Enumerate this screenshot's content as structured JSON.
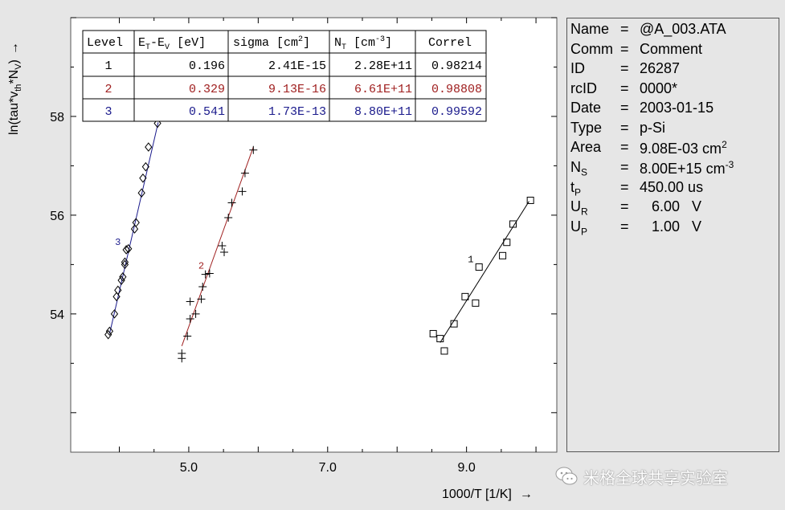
{
  "chart_data": {
    "type": "scatter",
    "xlabel": "1000/T  [1/K]",
    "ylabel": "ln(tau*v_th*N_V)",
    "xlim": [
      3.3,
      10.3
    ],
    "ylim": [
      51.2,
      60.0
    ],
    "xticks": [
      5.0,
      7.0,
      9.0
    ],
    "xtick_labels": [
      "5.0",
      "7.0",
      "9.0"
    ],
    "yticks": [
      54,
      56,
      58
    ],
    "ytick_labels": [
      "54",
      "56",
      "58"
    ],
    "grid": false,
    "colors": {
      "level1": "#000000",
      "level2": "#a02020",
      "level3": "#1a1a8c"
    },
    "series": [
      {
        "name": "1",
        "marker": "square",
        "color": "#000000",
        "points": [
          [
            8.52,
            53.6
          ],
          [
            8.62,
            53.5
          ],
          [
            8.68,
            53.25
          ],
          [
            8.82,
            53.8
          ],
          [
            8.98,
            54.35
          ],
          [
            9.13,
            54.22
          ],
          [
            9.18,
            54.95
          ],
          [
            9.52,
            55.18
          ],
          [
            9.58,
            55.45
          ],
          [
            9.67,
            55.82
          ],
          [
            9.92,
            56.3
          ]
        ],
        "fit": [
          [
            8.62,
            53.42
          ],
          [
            9.9,
            56.28
          ]
        ]
      },
      {
        "name": "2",
        "marker": "plus",
        "color": "#a02020",
        "points": [
          [
            4.9,
            53.1
          ],
          [
            4.9,
            53.2
          ],
          [
            4.98,
            53.55
          ],
          [
            5.02,
            53.9
          ],
          [
            5.02,
            54.25
          ],
          [
            5.1,
            54.0
          ],
          [
            5.18,
            54.3
          ],
          [
            5.2,
            54.55
          ],
          [
            5.24,
            54.8
          ],
          [
            5.3,
            54.82
          ],
          [
            5.48,
            55.38
          ],
          [
            5.51,
            55.25
          ],
          [
            5.57,
            55.95
          ],
          [
            5.62,
            56.25
          ],
          [
            5.77,
            56.48
          ],
          [
            5.81,
            56.85
          ],
          [
            5.93,
            57.32
          ]
        ],
        "fit": [
          [
            4.9,
            53.35
          ],
          [
            5.93,
            57.38
          ]
        ]
      },
      {
        "name": "3",
        "marker": "diamond",
        "color": "#1a1a8c",
        "points": [
          [
            3.84,
            53.58
          ],
          [
            3.86,
            53.65
          ],
          [
            3.93,
            54.0
          ],
          [
            3.96,
            54.35
          ],
          [
            3.98,
            54.48
          ],
          [
            4.03,
            54.68
          ],
          [
            4.05,
            54.75
          ],
          [
            4.08,
            55.0
          ],
          [
            4.08,
            55.05
          ],
          [
            4.1,
            55.3
          ],
          [
            4.13,
            55.32
          ],
          [
            4.22,
            55.72
          ],
          [
            4.24,
            55.85
          ],
          [
            4.32,
            56.45
          ],
          [
            4.34,
            56.75
          ],
          [
            4.38,
            56.98
          ],
          [
            4.42,
            57.38
          ],
          [
            4.55,
            57.86
          ]
        ],
        "fit": [
          [
            3.86,
            53.6
          ],
          [
            4.56,
            57.88
          ]
        ]
      }
    ],
    "table": {
      "headers": [
        "Level",
        "E_T-E_V [eV]",
        "sigma [cm^2]",
        "N_T [cm^-3]",
        "Correl"
      ],
      "rows": [
        [
          "1",
          "0.196",
          "2.41E-15",
          "2.28E+11",
          "0.98214"
        ],
        [
          "2",
          "0.329",
          "9.13E-16",
          "6.61E+11",
          "0.98808"
        ],
        [
          "3",
          "0.541",
          "1.73E-13",
          "8.80E+11",
          "0.99592"
        ]
      ]
    }
  },
  "labels": {
    "ylabel_pre": "ln(tau*v",
    "ylabel_sub1": "th",
    "ylabel_mid": "*N",
    "ylabel_sub2": "V",
    "ylabel_post": ")",
    "xlabel": "1000/T  [1/K]",
    "arrow": "→",
    "col_level": "Level",
    "col_et_a": "E",
    "col_et_sub1": "T",
    "col_et_b": "-E",
    "col_et_sub2": "V",
    "col_et_c": " [eV]",
    "col_sigma": "sigma [cm",
    "col_sigma_sup": "2",
    "col_sigma_end": "]",
    "col_nt": "N",
    "col_nt_sub": "T",
    "col_nt_mid": "  [cm",
    "col_nt_sup": "-3",
    "col_nt_end": "]",
    "col_correl": "Correl"
  },
  "info": [
    {
      "key": "Name",
      "value": "@A_003.ATA"
    },
    {
      "key": "Comm",
      "value": "Comment"
    },
    {
      "key": "ID",
      "value": "26287"
    },
    {
      "key": "rcID",
      "value": "0000*"
    },
    {
      "key": "Date",
      "value": "2003-01-15"
    },
    {
      "key": "Type",
      "value": "p-Si"
    },
    {
      "key": "Area",
      "value": "9.08E-03  cm",
      "sup": "2"
    },
    {
      "key": "N",
      "key_sub": "S",
      "value": "8.00E+15  cm",
      "sup": "-3"
    },
    {
      "key": "t",
      "key_sub": "P",
      "value": "450.00  us"
    },
    {
      "key": "U",
      "key_sub": "R",
      "value": "   6.00   V"
    },
    {
      "key": "U",
      "key_sub": "P",
      "value": "   1.00   V"
    }
  ],
  "watermark": {
    "text": "米格全球共享实验室"
  }
}
